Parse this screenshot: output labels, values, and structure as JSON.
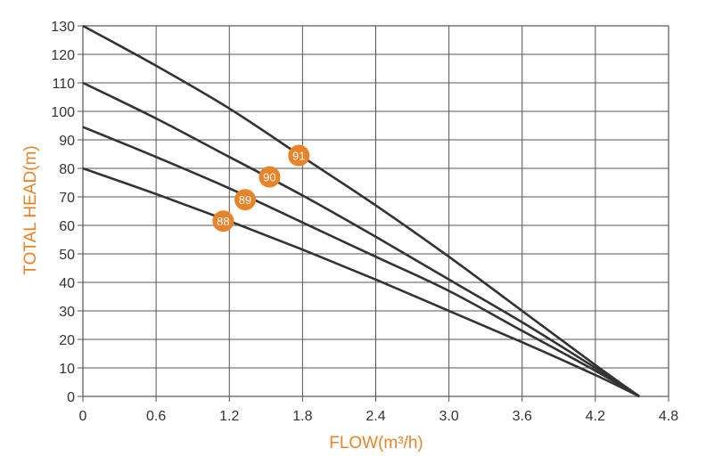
{
  "colors": {
    "curve": "#333333",
    "grid": "#555555",
    "accent": "#e8832a",
    "badge_text": "#ffffff"
  },
  "chart_data": {
    "type": "line",
    "title": "",
    "xlabel": "FLOW(m³/h)",
    "ylabel": "TOTAL HEAD(m)",
    "xlim": [
      0,
      4.8
    ],
    "ylim": [
      0,
      130
    ],
    "x_ticks": [
      0,
      0.6,
      1.2,
      1.8,
      2.4,
      3.0,
      3.6,
      4.2,
      4.8
    ],
    "x_tick_labels": [
      "0",
      "0.6",
      "1.2",
      "1.8",
      "2.4",
      "3.0",
      "3.6",
      "4.2",
      "4.8"
    ],
    "y_ticks": [
      0,
      10,
      20,
      30,
      40,
      50,
      60,
      70,
      80,
      90,
      100,
      110,
      120,
      130
    ],
    "y_tick_labels": [
      "0",
      "10",
      "20",
      "30",
      "40",
      "50",
      "60",
      "70",
      "80",
      "90",
      "100",
      "110",
      "120",
      "130"
    ],
    "grid": true,
    "series": [
      {
        "name": "91",
        "x": [
          0,
          0.6,
          1.2,
          1.8,
          2.4,
          3.0,
          3.6,
          4.2,
          4.56
        ],
        "y": [
          130,
          116,
          101,
          84,
          67,
          49,
          30,
          11,
          0
        ],
        "label_at": [
          1.77,
          84.5
        ]
      },
      {
        "name": "90",
        "x": [
          0,
          0.6,
          1.2,
          1.8,
          2.4,
          3.0,
          3.6,
          4.2,
          4.56
        ],
        "y": [
          110,
          97.5,
          84,
          70.5,
          56,
          41,
          26,
          10,
          0
        ],
        "label_at": [
          1.53,
          77
        ]
      },
      {
        "name": "89",
        "x": [
          0,
          0.6,
          1.2,
          1.8,
          2.4,
          3.0,
          3.6,
          4.2,
          4.56
        ],
        "y": [
          94.5,
          84,
          73,
          61,
          49,
          37,
          23,
          9,
          0
        ],
        "label_at": [
          1.33,
          69
        ]
      },
      {
        "name": "88",
        "x": [
          0,
          0.6,
          1.2,
          1.8,
          2.4,
          3.0,
          3.6,
          4.2,
          4.56
        ],
        "y": [
          80,
          71,
          61.5,
          51.5,
          41,
          30,
          19,
          7.5,
          0
        ],
        "label_at": [
          1.15,
          61.5
        ]
      }
    ]
  }
}
